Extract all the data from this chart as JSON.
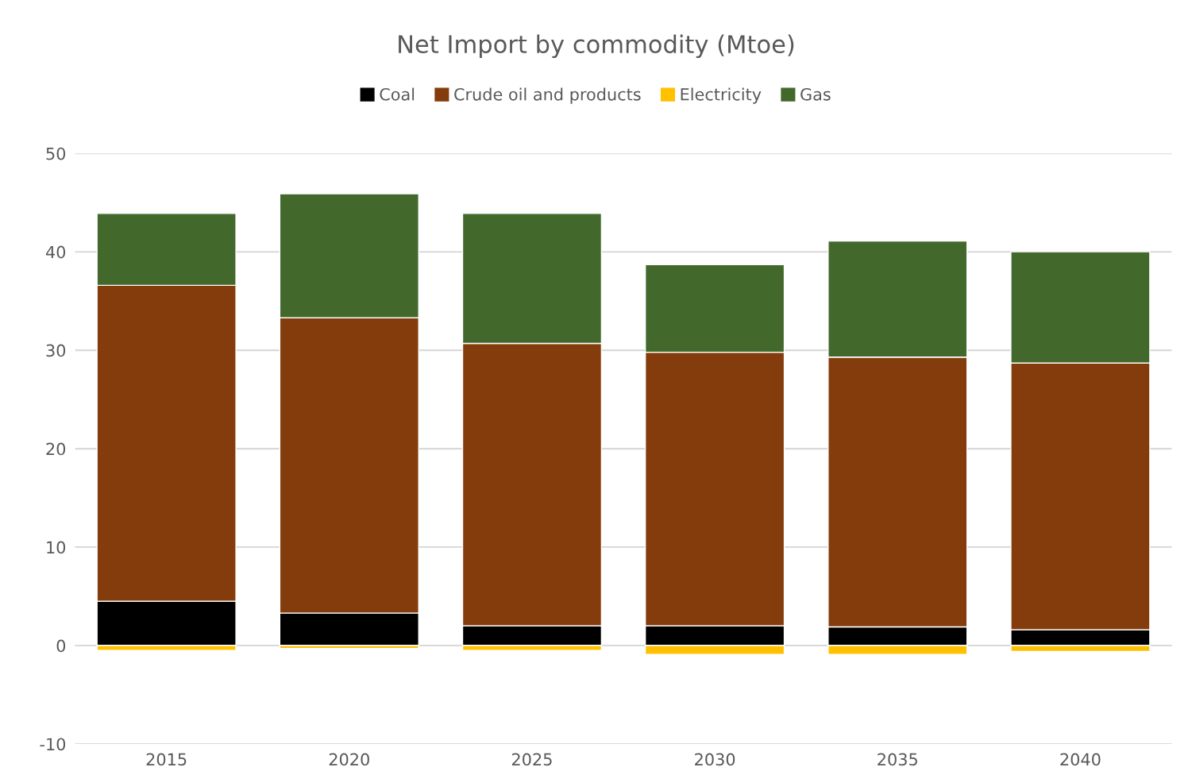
{
  "chart_data": {
    "type": "bar",
    "title": "Net Import by commodity (Mtoe)",
    "stacked": true,
    "categories": [
      "2015",
      "2020",
      "2025",
      "2030",
      "2035",
      "2040"
    ],
    "series": [
      {
        "name": "Coal",
        "color": "#000000",
        "values": [
          4.5,
          3.3,
          2.0,
          2.0,
          1.9,
          1.6
        ]
      },
      {
        "name": "Crude oil and products",
        "color": "#843c0c",
        "values": [
          32.1,
          30.0,
          28.7,
          27.8,
          27.4,
          27.1
        ]
      },
      {
        "name": "Electricity",
        "color": "#ffc000",
        "values": [
          -0.5,
          -0.3,
          -0.5,
          -0.9,
          -0.9,
          -0.6
        ]
      },
      {
        "name": "Gas",
        "color": "#43682b",
        "values": [
          7.3,
          12.6,
          13.2,
          8.9,
          11.8,
          11.3
        ]
      }
    ],
    "ylim": [
      -10,
      50
    ],
    "yticks": [
      -10,
      0,
      10,
      20,
      30,
      40,
      50
    ],
    "grid": "y",
    "legend": "top"
  }
}
